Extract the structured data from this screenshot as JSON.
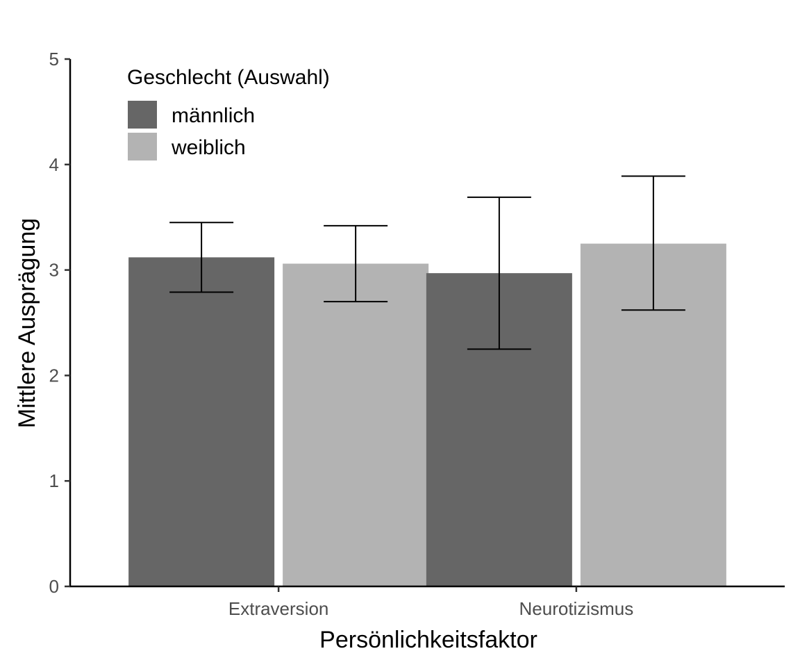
{
  "chart_data": {
    "type": "bar",
    "categories": [
      "Extraversion",
      "Neurotizismus"
    ],
    "series": [
      {
        "name": "männlich",
        "color": "#666666",
        "values": [
          3.12,
          2.97
        ],
        "error_low": [
          2.79,
          2.25
        ],
        "error_high": [
          3.45,
          3.69
        ]
      },
      {
        "name": "weiblich",
        "color": "#b3b3b3",
        "values": [
          3.06,
          3.25
        ],
        "error_low": [
          2.7,
          2.62
        ],
        "error_high": [
          3.42,
          3.89
        ]
      }
    ],
    "xlabel": "Persönlichkeitsfaktor",
    "ylabel": "Mittlere Ausprägung",
    "ylim": [
      0,
      5
    ],
    "yticks": [
      "0",
      "1",
      "2",
      "3",
      "4",
      "5"
    ],
    "legend_title": "Geschlecht (Auswahl)",
    "legend_position": "top-left",
    "grid": false
  }
}
